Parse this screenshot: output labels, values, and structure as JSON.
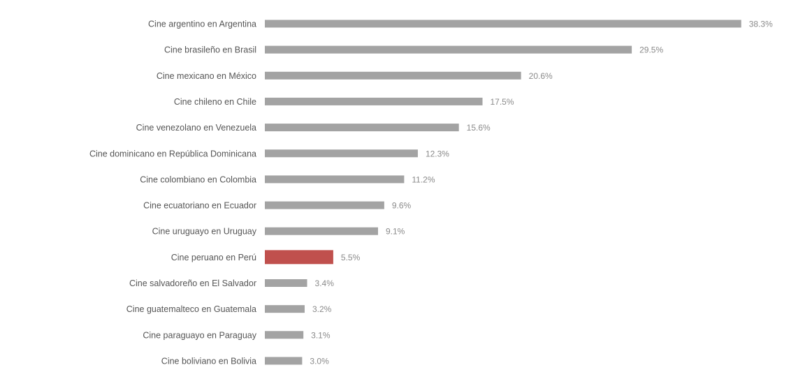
{
  "chart_data": {
    "type": "bar",
    "orientation": "horizontal",
    "categories": [
      "Cine argentino en Argentina",
      "Cine brasileño en Brasil",
      "Cine mexicano en México",
      "Cine chileno en Chile",
      "Cine venezolano en Venezuela",
      "Cine dominicano en República Dominicana",
      "Cine colombiano en Colombia",
      "Cine ecuatoriano en Ecuador",
      "Cine uruguayo en Uruguay",
      "Cine peruano en Perú",
      "Cine salvadoreño en El Salvador",
      "Cine guatemalteco en Guatemala",
      "Cine paraguayo en Paraguay",
      "Cine boliviano en Bolivia"
    ],
    "values": [
      38.3,
      29.5,
      20.6,
      17.5,
      15.6,
      12.3,
      11.2,
      9.6,
      9.1,
      5.5,
      3.4,
      3.2,
      3.1,
      3.0
    ],
    "value_labels": [
      "38.3%",
      "29.5%",
      "20.6%",
      "17.5%",
      "15.6%",
      "12.3%",
      "11.2%",
      "9.6%",
      "9.1%",
      "5.5%",
      "3.4%",
      "3.2%",
      "3.1%",
      "3.0%"
    ],
    "unit": "%",
    "highlight": "Cine peruano en Perú",
    "colors": {
      "bar": "#a3a3a3",
      "highlight": "#c0504d"
    },
    "title": "",
    "xlabel": "",
    "ylabel": "",
    "grid": false,
    "legend": "none"
  }
}
